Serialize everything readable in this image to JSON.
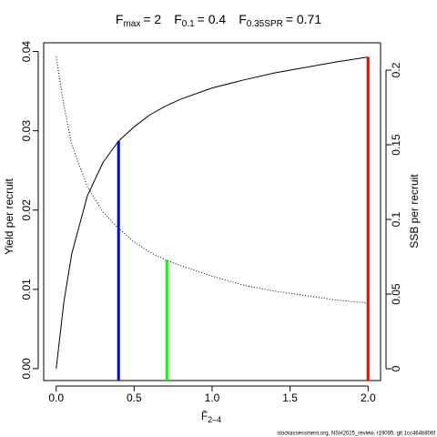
{
  "chart_data": {
    "type": "line",
    "title_parts": [
      {
        "symbol": "F",
        "sub": "max",
        "label": "= 2"
      },
      {
        "symbol": "F",
        "sub": "0.1",
        "label": "= 0.4"
      },
      {
        "symbol": "F",
        "sub": "0.35SPR",
        "label": "= 0.71"
      }
    ],
    "xlabel": "F̄",
    "xlabel_sub": "2–4",
    "ylabel": "Yield per recruit",
    "y2label": "SSB per recruit",
    "footer": "stockassessment.org, NSH2025_review, r19095, git:1cc464b806f",
    "x": [
      0,
      0.05,
      0.1,
      0.2,
      0.3,
      0.4,
      0.5,
      0.6,
      0.7,
      0.8,
      1.0,
      1.2,
      1.4,
      1.6,
      1.8,
      2.0
    ],
    "series": [
      {
        "name": "Yield per recruit",
        "color": "#000000",
        "linestyle": "solid",
        "axis": "y",
        "values": [
          0,
          0.0085,
          0.0145,
          0.0218,
          0.026,
          0.0287,
          0.0305,
          0.032,
          0.0331,
          0.034,
          0.0354,
          0.0364,
          0.0373,
          0.038,
          0.0387,
          0.0393
        ]
      },
      {
        "name": "SSB per recruit",
        "color": "#000000",
        "linestyle": "dotted",
        "axis": "y2",
        "values": [
          0.209,
          0.176,
          0.15,
          0.122,
          0.105,
          0.094,
          0.085,
          0.078,
          0.073,
          0.069,
          0.062,
          0.056,
          0.052,
          0.049,
          0.046,
          0.044
        ]
      }
    ],
    "reference_lines": [
      {
        "value": 2,
        "top": 0.0393,
        "axis": "y",
        "color": "#ff0000"
      },
      {
        "value": 0.4,
        "top": 0.0287,
        "axis": "y",
        "color": "#0000ff"
      },
      {
        "value": 0.71,
        "top": 0.073,
        "axis": "y2",
        "color": "#00ff00"
      }
    ],
    "xlim": [
      -0.08,
      2.08
    ],
    "xticks": [
      {
        "value": 0,
        "label": "0.0"
      },
      {
        "value": 0.5,
        "label": "0.5"
      },
      {
        "value": 1,
        "label": "1.0"
      },
      {
        "value": 1.5,
        "label": "1.5"
      },
      {
        "value": 2,
        "label": "2.0"
      }
    ],
    "ylim": [
      -0.0015,
      0.0411
    ],
    "yticks": [
      {
        "value": 0,
        "label": "0.00"
      },
      {
        "value": 0.01,
        "label": "0.01"
      },
      {
        "value": 0.02,
        "label": "0.02"
      },
      {
        "value": 0.03,
        "label": "0.03"
      },
      {
        "value": 0.04,
        "label": "0.04"
      }
    ],
    "y2lim": [
      -0.0079,
      0.2183
    ],
    "y2ticks": [
      0,
      0.05,
      0.1,
      0.15,
      0.2
    ]
  }
}
